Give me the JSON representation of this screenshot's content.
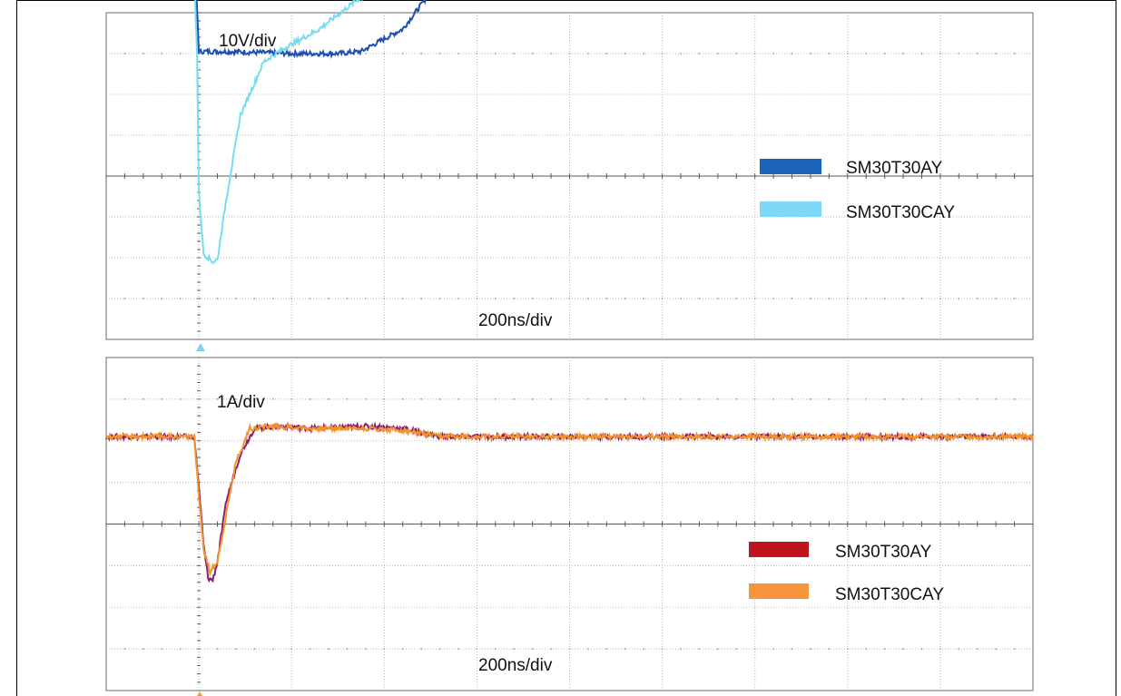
{
  "chart_data": [
    {
      "type": "line",
      "annotations": [
        "10V/div",
        "200ns/div"
      ],
      "x_divisions": 10,
      "y_divisions": 8,
      "legend_position": "right",
      "series": [
        {
          "name": "SM30T30AY",
          "color": "#1f4fb4",
          "legend_color": "#1a63b8",
          "points": [
            [
              0,
              5.0
            ],
            [
              0.95,
              5.0
            ],
            [
              0.97,
              4.6
            ],
            [
              1.0,
              3.05
            ],
            [
              1.3,
              3.05
            ],
            [
              2.0,
              3.0
            ],
            [
              2.5,
              3.0
            ],
            [
              2.75,
              3.05
            ],
            [
              2.95,
              3.3
            ],
            [
              3.2,
              3.6
            ],
            [
              3.5,
              4.5
            ],
            [
              3.8,
              4.85
            ],
            [
              4.2,
              5.0
            ],
            [
              4.5,
              5.2
            ],
            [
              5.5,
              5.2
            ],
            [
              6.5,
              5.18
            ],
            [
              8.0,
              5.15
            ],
            [
              10.0,
              5.15
            ]
          ]
        },
        {
          "name": "SM30T30CAY",
          "color": "#77dcf2",
          "legend_color": "#7fd8f5",
          "points": [
            [
              0,
              5.0
            ],
            [
              0.95,
              5.0
            ],
            [
              0.98,
              3.0
            ],
            [
              1.0,
              -0.4
            ],
            [
              1.05,
              -1.9
            ],
            [
              1.15,
              -2.1
            ],
            [
              1.2,
              -2.05
            ],
            [
              1.3,
              -0.5
            ],
            [
              1.45,
              1.5
            ],
            [
              1.7,
              2.8
            ],
            [
              1.9,
              3.1
            ],
            [
              2.3,
              3.6
            ],
            [
              2.7,
              4.3
            ],
            [
              3.2,
              4.85
            ],
            [
              3.8,
              4.95
            ],
            [
              4.2,
              5.15
            ],
            [
              4.5,
              5.25
            ],
            [
              5.5,
              5.25
            ],
            [
              6.5,
              5.2
            ],
            [
              8.0,
              5.15
            ],
            [
              10.0,
              5.15
            ]
          ]
        }
      ]
    },
    {
      "type": "line",
      "annotations": [
        "1A/div",
        "200ns/div"
      ],
      "x_divisions": 10,
      "y_divisions": 8,
      "legend_position": "right",
      "series": [
        {
          "name": "SM30T30AY",
          "color": "#8a1f6e",
          "legend_color": "#c0141c",
          "points": [
            [
              0,
              2.1
            ],
            [
              0.95,
              2.1
            ],
            [
              1.0,
              0.9
            ],
            [
              1.05,
              -0.5
            ],
            [
              1.1,
              -1.3
            ],
            [
              1.15,
              -1.35
            ],
            [
              1.2,
              -0.9
            ],
            [
              1.3,
              0.6
            ],
            [
              1.45,
              1.7
            ],
            [
              1.6,
              2.3
            ],
            [
              1.9,
              2.35
            ],
            [
              2.2,
              2.3
            ],
            [
              2.8,
              2.35
            ],
            [
              3.2,
              2.3
            ],
            [
              3.6,
              2.1
            ],
            [
              4.5,
              2.1
            ],
            [
              6.0,
              2.1
            ],
            [
              8.0,
              2.1
            ],
            [
              10.0,
              2.1
            ]
          ]
        },
        {
          "name": "SM30T30CAY",
          "color": "#f3932c",
          "legend_color": "#f5963d",
          "points": [
            [
              0,
              2.1
            ],
            [
              0.95,
              2.1
            ],
            [
              1.0,
              0.7
            ],
            [
              1.05,
              -0.6
            ],
            [
              1.12,
              -1.15
            ],
            [
              1.2,
              -0.9
            ],
            [
              1.3,
              0.3
            ],
            [
              1.4,
              1.5
            ],
            [
              1.55,
              2.3
            ],
            [
              1.8,
              2.35
            ],
            [
              2.2,
              2.3
            ],
            [
              2.8,
              2.3
            ],
            [
              3.2,
              2.25
            ],
            [
              3.6,
              2.1
            ],
            [
              4.5,
              2.1
            ],
            [
              6.0,
              2.1
            ],
            [
              8.0,
              2.1
            ],
            [
              10.0,
              2.1
            ]
          ]
        }
      ]
    }
  ]
}
